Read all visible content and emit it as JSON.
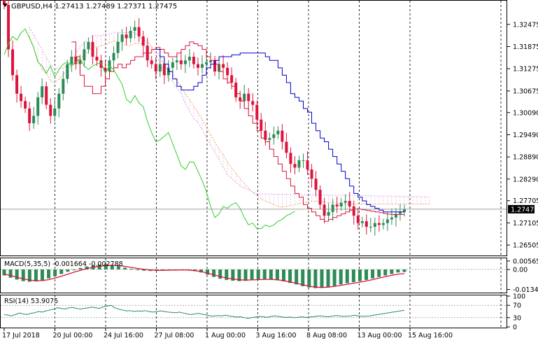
{
  "header": {
    "symbol_line": "GBPUSD,H4  1.27413 1.27489 1.27371 1.27475",
    "dropdown_icon": "triangle-down-icon"
  },
  "colors": {
    "bull": "#2e8b57",
    "bear": "#dc143c",
    "tenkan": "#dc143c",
    "kijun": "#0000cd",
    "chikou": "#32cd32",
    "kumo_a": "#f4a460",
    "kumo_b": "#dda0dd",
    "macd_hist": "#2e8b57",
    "macd_signal": "#dc143c",
    "rsi_line": "#2e8b57",
    "grid": "#000000",
    "price_label_bg": "#000000"
  },
  "chart_data": [
    {
      "type": "candlestick",
      "title": "GBPUSD,H4",
      "ohlc_readout": {
        "open": 1.27413,
        "high": 1.27489,
        "low": 1.27371,
        "close": 1.27475
      },
      "indicators": [
        "Ichimoku Kinko Hyo (tenkan, kijun, chikou, kumo)"
      ],
      "y_ticks": [
        "1.32475",
        "1.31875",
        "1.31275",
        "1.30675",
        "1.30090",
        "1.29490",
        "1.28890",
        "1.28290",
        "1.27705",
        "1.27105",
        "1.26505"
      ],
      "ylim": [
        1.2628,
        1.3285
      ],
      "current_price_label": "1.27475",
      "current_price": 1.27475,
      "x_ticks": [
        "17 Jul 2018",
        "20 Jul 00:00",
        "24 Jul 16:00",
        "27 Jul 08:00",
        "1 Aug 00:00",
        "3 Aug 16:00",
        "8 Aug 08:00",
        "13 Aug 00:00",
        "15 Aug 16:00"
      ],
      "closes": [
        1.33,
        1.318,
        1.311,
        1.306,
        1.304,
        1.302,
        1.298,
        1.3,
        1.305,
        1.308,
        1.303,
        1.3,
        1.302,
        1.306,
        1.31,
        1.314,
        1.316,
        1.314,
        1.315,
        1.318,
        1.32,
        1.316,
        1.315,
        1.313,
        1.312,
        1.315,
        1.317,
        1.32,
        1.322,
        1.321,
        1.323,
        1.324,
        1.3215,
        1.319,
        1.315,
        1.314,
        1.312,
        1.314,
        1.311,
        1.313,
        1.3145,
        1.315,
        1.314,
        1.315,
        1.316,
        1.314,
        1.313,
        1.314,
        1.3145,
        1.315,
        1.312,
        1.314,
        1.313,
        1.311,
        1.309,
        1.305,
        1.304,
        1.306,
        1.304,
        1.303,
        1.299,
        1.296,
        1.2935,
        1.294,
        1.295,
        1.296,
        1.293,
        1.29,
        1.287,
        1.286,
        1.288,
        1.288,
        1.2855,
        1.283,
        1.28,
        1.276,
        1.273,
        1.274,
        1.276,
        1.2755,
        1.2765,
        1.277,
        1.2755,
        1.273,
        1.271,
        1.2715,
        1.27,
        1.27,
        1.271,
        1.2705,
        1.271,
        1.272,
        1.2725,
        1.2735,
        1.274,
        1.27475
      ],
      "tenkan": [
        1.32,
        1.316,
        1.311,
        1.308,
        1.308,
        1.306,
        1.306,
        1.308,
        1.31,
        1.312,
        1.313,
        1.314,
        1.313,
        1.314,
        1.315,
        1.316,
        1.316,
        1.317,
        1.317,
        1.318,
        1.3185,
        1.318,
        1.317,
        1.316,
        1.316,
        1.317,
        1.318,
        1.319,
        1.32,
        1.3195,
        1.319,
        1.318,
        1.316,
        1.315,
        1.314,
        1.312,
        1.31,
        1.309,
        1.308,
        1.306,
        1.304,
        1.302,
        1.3,
        1.298,
        1.296,
        1.294,
        1.293,
        1.291,
        1.289,
        1.287,
        1.285,
        1.283,
        1.281,
        1.279,
        1.278,
        1.276,
        1.275,
        1.274,
        1.273,
        1.272,
        1.2715,
        1.272,
        1.2725,
        1.273,
        1.2735,
        1.274,
        1.2745,
        1.2748,
        1.2748,
        1.2746,
        1.2744,
        1.2742,
        1.274,
        1.2738,
        1.2736,
        1.2734,
        1.2733,
        1.2733,
        1.2733,
        1.2733
      ],
      "kijun": [
        1.318,
        1.316,
        1.314,
        1.312,
        1.31,
        1.308,
        1.307,
        1.307,
        1.307,
        1.308,
        1.309,
        1.311,
        1.313,
        1.314,
        1.315,
        1.316,
        1.316,
        1.316,
        1.3165,
        1.3165,
        1.317,
        1.317,
        1.317,
        1.317,
        1.317,
        1.317,
        1.316,
        1.315,
        1.315,
        1.313,
        1.311,
        1.309,
        1.306,
        1.305,
        1.304,
        1.302,
        1.301,
        1.298,
        1.296,
        1.294,
        1.293,
        1.291,
        1.289,
        1.287,
        1.285,
        1.283,
        1.281,
        1.279,
        1.278,
        1.277,
        1.276,
        1.2755,
        1.275,
        1.2745,
        1.274,
        1.274,
        1.274,
        1.274,
        1.274,
        1.274
      ],
      "macd": {
        "label": "MACD(5,35,5) -0.001664 -0.002788",
        "y_ticks": [
          "0.005652",
          "0.00",
          "-0.0134"
        ],
        "ylim": [
          -0.015,
          0.007
        ],
        "hist": [
          -0.004,
          -0.0055,
          -0.0068,
          -0.0078,
          -0.0082,
          -0.008,
          -0.0072,
          -0.006,
          -0.0045,
          -0.003,
          -0.0015,
          -0.0002,
          0.001,
          0.002,
          0.0028,
          0.0033,
          0.0035,
          0.003,
          0.0022,
          0.0012,
          0.0004,
          -0.0003,
          -0.0008,
          -0.001,
          -0.0009,
          -0.0006,
          -0.0004,
          -0.0002,
          -0.0002,
          -0.0004,
          -0.001,
          -0.002,
          -0.0035,
          -0.005,
          -0.0062,
          -0.007,
          -0.0075,
          -0.0078,
          -0.0076,
          -0.007,
          -0.0066,
          -0.0064,
          -0.0066,
          -0.0072,
          -0.008,
          -0.009,
          -0.01,
          -0.0112,
          -0.012,
          -0.0125,
          -0.0124,
          -0.0118,
          -0.011,
          -0.01,
          -0.0092,
          -0.0085,
          -0.0078,
          -0.007,
          -0.006,
          -0.005,
          -0.004,
          -0.003,
          -0.002,
          -0.0017
        ],
        "signal": [
          -0.003,
          -0.004,
          -0.0052,
          -0.0063,
          -0.0071,
          -0.0075,
          -0.0074,
          -0.0068,
          -0.0058,
          -0.0045,
          -0.0032,
          -0.0018,
          -0.0006,
          0.0006,
          0.0015,
          0.0022,
          0.0027,
          0.0028,
          0.0026,
          0.0021,
          0.0014,
          0.0007,
          0.0001,
          -0.0003,
          -0.0006,
          -0.0006,
          -0.0005,
          -0.0004,
          -0.0003,
          -0.0004,
          -0.0008,
          -0.0014,
          -0.0024,
          -0.0036,
          -0.0047,
          -0.0057,
          -0.0064,
          -0.0069,
          -0.0071,
          -0.007,
          -0.0068,
          -0.0066,
          -0.0066,
          -0.0069,
          -0.0075,
          -0.0083,
          -0.0092,
          -0.0102,
          -0.0112,
          -0.0118,
          -0.012,
          -0.0118,
          -0.0113,
          -0.0106,
          -0.0099,
          -0.0092,
          -0.0085,
          -0.0077,
          -0.0068,
          -0.0058,
          -0.0048,
          -0.0039,
          -0.0031,
          -0.0028
        ]
      },
      "rsi": {
        "label": "RSI(14) 53.9075",
        "y_ticks": [
          "100",
          "70",
          "30",
          "0"
        ],
        "ylim": [
          0,
          100
        ],
        "levels": [
          30,
          70
        ],
        "values": [
          40,
          38,
          36,
          40,
          45,
          42,
          40,
          44,
          46,
          50,
          48,
          52,
          55,
          58,
          62,
          60,
          58,
          62,
          63,
          60,
          58,
          60,
          62,
          64,
          62,
          60,
          65,
          68,
          70,
          62,
          58,
          55,
          52,
          53,
          50,
          52,
          51,
          53,
          50,
          48,
          50,
          52,
          50,
          48,
          47,
          46,
          48,
          45,
          42,
          40,
          42,
          44,
          41,
          39,
          36,
          35,
          37,
          36,
          38,
          36,
          34,
          32,
          33,
          30,
          28,
          30,
          32,
          34,
          33,
          31,
          34,
          36,
          34,
          32,
          31,
          32,
          30,
          31,
          33,
          31,
          32,
          33,
          35,
          36,
          34,
          33,
          35,
          37,
          36,
          34,
          35,
          36,
          38,
          36,
          34,
          35,
          36,
          38,
          40,
          42,
          44,
          46,
          48,
          50,
          52,
          53.9
        ]
      }
    }
  ]
}
